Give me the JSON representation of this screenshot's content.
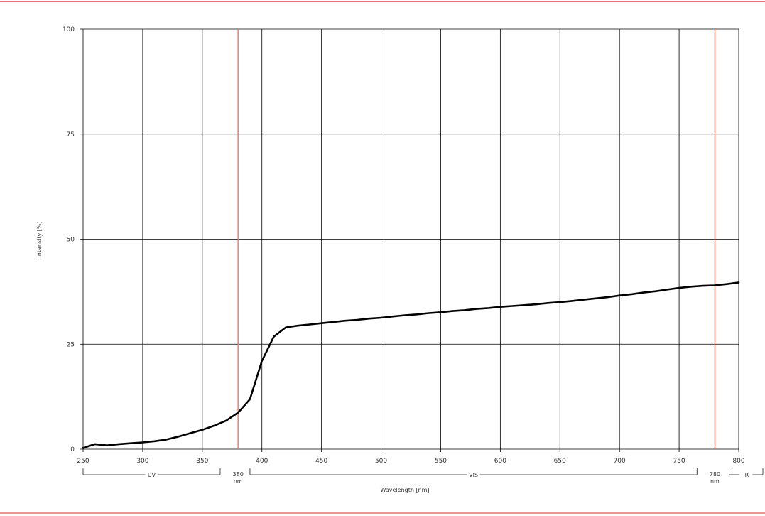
{
  "colors": {
    "frame": "#e57373",
    "grid": "#000000",
    "marker": "#e8785f",
    "curve": "#000000"
  },
  "chart_data": {
    "type": "line",
    "title": "",
    "xlabel": "Wavelength [nm]",
    "ylabel": "Intensity [%]",
    "xlim": [
      250,
      800
    ],
    "ylim": [
      0,
      100
    ],
    "x_ticks": [
      250,
      300,
      350,
      400,
      450,
      500,
      550,
      600,
      650,
      700,
      750,
      800
    ],
    "y_ticks": [
      0,
      25,
      50,
      75,
      100
    ],
    "grid": true,
    "series": [
      {
        "x": [
          250,
          260,
          270,
          280,
          290,
          300,
          310,
          320,
          330,
          340,
          350,
          360,
          370,
          380,
          390,
          400,
          410,
          420,
          430,
          440,
          450,
          460,
          470,
          480,
          490,
          500,
          510,
          520,
          530,
          540,
          550,
          560,
          570,
          580,
          590,
          600,
          610,
          620,
          630,
          640,
          650,
          660,
          670,
          680,
          690,
          700,
          710,
          720,
          730,
          740,
          750,
          760,
          770,
          780,
          790,
          800
        ],
        "y": [
          0.3,
          1.2,
          0.9,
          1.2,
          1.4,
          1.6,
          1.9,
          2.3,
          3.0,
          3.8,
          4.6,
          5.6,
          6.8,
          8.7,
          11.9,
          21.0,
          26.8,
          29.0,
          29.4,
          29.7,
          30.0,
          30.3,
          30.6,
          30.8,
          31.1,
          31.3,
          31.6,
          31.9,
          32.1,
          32.4,
          32.6,
          32.9,
          33.1,
          33.4,
          33.6,
          33.9,
          34.1,
          34.3,
          34.5,
          34.8,
          35.0,
          35.3,
          35.6,
          35.9,
          36.2,
          36.6,
          36.9,
          37.3,
          37.6,
          38.0,
          38.4,
          38.7,
          38.9,
          39.0,
          39.3,
          39.7
        ]
      }
    ],
    "markers": [
      380,
      780
    ],
    "bands": [
      {
        "label": "UV",
        "from": 250,
        "to": 365
      },
      {
        "label": "VIS",
        "from": 390,
        "to": 765
      },
      {
        "label": "IR",
        "from": 792,
        "to": 800
      }
    ],
    "boundary_labels": [
      {
        "value": "380",
        "unit": "nm"
      },
      {
        "value": "780",
        "unit": "nm"
      }
    ]
  }
}
